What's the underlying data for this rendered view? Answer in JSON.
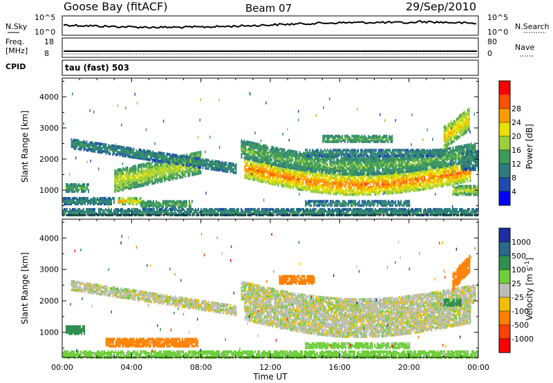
{
  "header": {
    "station": "Goose Bay (fitACF)",
    "beam": "Beam 07",
    "date": "29/Sep/2010"
  },
  "status_panels": {
    "nsky_label": "N.Sky",
    "nsky_ticks": [
      "10^5",
      "10^0"
    ],
    "nsearch_label": "N.Search",
    "nsearch_ticks": [
      "10^5",
      "10^0"
    ],
    "freq_label": "Freq.",
    "freq_unit": "[MHz]",
    "freq_ticks": [
      "18",
      "8"
    ],
    "nave_label": "Nave",
    "nave_ticks": [
      "80",
      "0"
    ],
    "cpid_label": "CPID",
    "cpid_value": "tau (fast) 503"
  },
  "colors": {
    "power": [
      "#0000ff",
      "#1e4bb0",
      "#2e7d7d",
      "#3d9b5a",
      "#9ccf3a",
      "#e8e000",
      "#ff9a00",
      "#ff5000",
      "#ff0000"
    ],
    "velocity": [
      "#1a2fa0",
      "#2a6a8a",
      "#2f8f4f",
      "#6ccf3a",
      "#bdbdb8",
      "#f0c000",
      "#ff8000",
      "#ff4000",
      "#ff0000"
    ],
    "nsky_line": "#000000",
    "ground": "#9e9e9e"
  },
  "chart_data": [
    {
      "type": "heatmap",
      "title": "Power",
      "xlabel": "Time UT",
      "ylabel": "Slant Range [km]",
      "xlim_hours": [
        0,
        24
      ],
      "ylim_km": [
        200,
        4600
      ],
      "x_ticks": [
        "00:00",
        "04:00",
        "08:00",
        "12:00",
        "16:00",
        "20:00",
        "00:00"
      ],
      "y_ticks": [
        1000,
        2000,
        3000,
        4000
      ],
      "colorbar": {
        "label": "Power [dB]",
        "ticks": [
          4,
          8,
          12,
          16,
          20,
          24,
          28
        ]
      },
      "regions": [
        {
          "t0": 10.5,
          "t1": 23.5,
          "r0": 1200,
          "r1": 1850,
          "shape": "arc",
          "level": 24
        },
        {
          "t0": 10.3,
          "t1": 23.8,
          "r0": 1850,
          "r1": 2400,
          "shape": "arc",
          "level": 12
        },
        {
          "t0": 14.0,
          "t1": 22.0,
          "r0": 2150,
          "r1": 2350,
          "shape": "flat",
          "level": 8
        },
        {
          "t0": 15.0,
          "t1": 19.0,
          "r0": 2600,
          "r1": 2800,
          "shape": "flat",
          "level": 12
        },
        {
          "t0": 22.0,
          "t1": 23.5,
          "r0": 2400,
          "r1": 3100,
          "shape": "rise",
          "level": 20
        },
        {
          "t0": 22.5,
          "t1": 24.0,
          "r0": 900,
          "r1": 1200,
          "shape": "flat",
          "level": 16
        },
        {
          "t0": 23.0,
          "t1": 24.0,
          "r0": 1700,
          "r1": 2300,
          "shape": "flat",
          "level": 8
        },
        {
          "t0": 0.2,
          "t1": 1.5,
          "r0": 1000,
          "r1": 1250,
          "shape": "flat",
          "level": 12
        },
        {
          "t0": 3.0,
          "t1": 8.0,
          "r0": 1000,
          "r1": 1700,
          "shape": "rise",
          "level": 16
        },
        {
          "t0": 3.2,
          "t1": 4.5,
          "r0": 600,
          "r1": 800,
          "shape": "flat",
          "level": 20
        },
        {
          "t0": 4.5,
          "t1": 7.5,
          "r0": 500,
          "r1": 700,
          "shape": "flat",
          "level": 12
        },
        {
          "t0": 0.5,
          "t1": 10.0,
          "r0": 2400,
          "r1": 2700,
          "shape": "fall",
          "level": 8
        },
        {
          "t0": 0.0,
          "t1": 24.0,
          "r0": 200,
          "r1": 450,
          "shape": "flat",
          "level": 8
        },
        {
          "t0": 0.0,
          "t1": 3.0,
          "r0": 600,
          "r1": 800,
          "shape": "flat",
          "level": 8
        },
        {
          "t0": 14.0,
          "t1": 20.0,
          "r0": 550,
          "r1": 700,
          "shape": "flat",
          "level": 8
        }
      ]
    },
    {
      "type": "heatmap",
      "title": "Velocity",
      "xlabel": "Time UT",
      "ylabel": "Slant Range [km]",
      "xlim_hours": [
        0,
        24
      ],
      "ylim_km": [
        200,
        4600
      ],
      "x_ticks": [
        "00:00",
        "04:00",
        "08:00",
        "12:00",
        "16:00",
        "20:00",
        "00:00"
      ],
      "y_ticks": [
        1000,
        2000,
        3000,
        4000
      ],
      "colorbar": {
        "label": "Velocity [m s^-1]",
        "ticks": [
          1000,
          500,
          100,
          25,
          -25,
          -100,
          -500,
          -1000
        ]
      },
      "regions": [
        {
          "t0": 10.5,
          "t1": 23.5,
          "r0": 1200,
          "r1": 1850,
          "shape": "arc",
          "level": 0
        },
        {
          "t0": 10.3,
          "t1": 23.8,
          "r0": 1850,
          "r1": 2400,
          "shape": "arc",
          "level": 0
        },
        {
          "t0": 12.5,
          "t1": 14.5,
          "r0": 2600,
          "r1": 2850,
          "shape": "flat",
          "level": -300
        },
        {
          "t0": 22.5,
          "t1": 23.5,
          "r0": 2400,
          "r1": 2900,
          "shape": "rise",
          "level": -300
        },
        {
          "t0": 22.0,
          "t1": 23.0,
          "r0": 1900,
          "r1": 2100,
          "shape": "flat",
          "level": 150
        },
        {
          "t0": 0.2,
          "t1": 1.3,
          "r0": 1000,
          "r1": 1250,
          "shape": "flat",
          "level": 150
        },
        {
          "t0": 2.5,
          "t1": 7.8,
          "r0": 600,
          "r1": 850,
          "shape": "flat",
          "level": -300
        },
        {
          "t0": 0.0,
          "t1": 24.0,
          "r0": 200,
          "r1": 450,
          "shape": "flat",
          "level": 60
        },
        {
          "t0": 0.5,
          "t1": 10.0,
          "r0": 2400,
          "r1": 2700,
          "shape": "fall",
          "level": 0
        },
        {
          "t0": 14.0,
          "t1": 20.0,
          "r0": 550,
          "r1": 700,
          "shape": "flat",
          "level": 60
        }
      ]
    }
  ]
}
